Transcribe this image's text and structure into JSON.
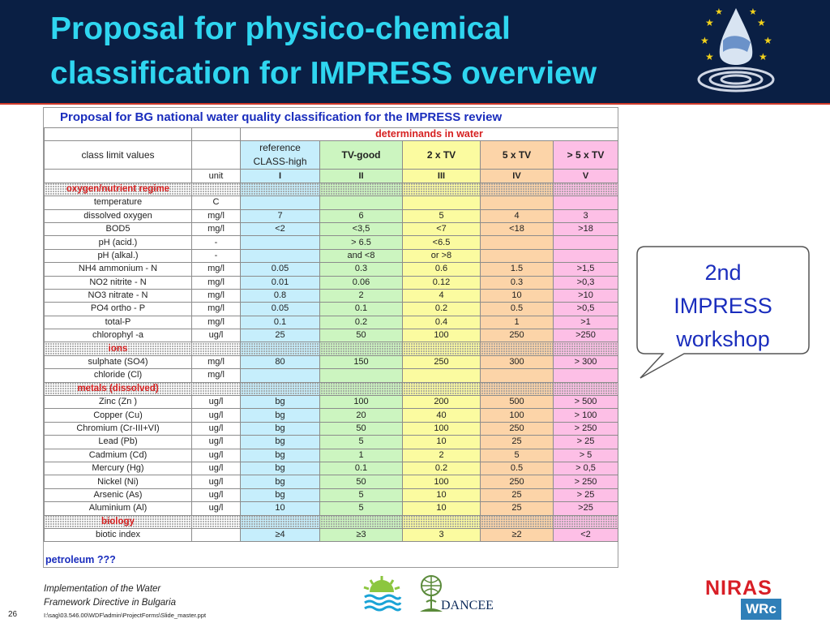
{
  "slide": {
    "title": "Proposal for physico-chemical classification for IMPRESS overview",
    "page_number": "26"
  },
  "callout": {
    "line1": "2nd",
    "line2": "IMPRESS",
    "line3": "workshop"
  },
  "footer": {
    "line1": "Implementation of the Water",
    "line2": "Framework Directive in Bulgaria",
    "path": "I:\\sag\\03.546.00\\WDF\\admin\\ProjectForms\\Slide_master.ppt",
    "logo_left": "DANCEE",
    "logo_right_top": "NIRAS",
    "logo_right_bottom": "WRc"
  },
  "table": {
    "title": "Proposal for BG national water quality classification for the  IMPRESS review",
    "determinands_header": "determinands in water",
    "class_limit_label": "class limit values",
    "class_headers": [
      "reference CLASS-high",
      "TV-good",
      "2 x TV",
      "5 x TV",
      "> 5 x TV"
    ],
    "unit_label": "unit",
    "class_numbers": [
      "I",
      "II",
      "III",
      "IV",
      "V"
    ],
    "sections": {
      "oxygen": "oxygen/nutrient regime",
      "ions": "ions",
      "metals": "metals (dissolved)",
      "biology": "biology"
    },
    "oxygen_rows": [
      [
        "temperature",
        "C",
        "",
        "",
        "",
        "",
        ""
      ],
      [
        "dissolved oxygen",
        "mg/l",
        "7",
        "6",
        "5",
        "4",
        "3"
      ],
      [
        "BOD5",
        "mg/l",
        "<2",
        "<3,5",
        "<7",
        "<18",
        ">18"
      ],
      [
        "pH (acid.)",
        "-",
        "",
        "> 6.5",
        "<6.5",
        "",
        ""
      ],
      [
        "pH (alkal.)",
        "-",
        "",
        "and <8",
        "or >8",
        "",
        ""
      ],
      [
        "NH4 ammonium - N",
        "mg/l",
        "0.05",
        "0.3",
        "0.6",
        "1.5",
        ">1,5"
      ],
      [
        "NO2 nitrite - N",
        "mg/l",
        "0.01",
        "0.06",
        "0.12",
        "0.3",
        ">0,3"
      ],
      [
        "NO3 nitrate - N",
        "mg/l",
        "0.8",
        "2",
        "4",
        "10",
        ">10"
      ],
      [
        "PO4 ortho - P",
        "mg/l",
        "0.05",
        "0.1",
        "0.2",
        "0.5",
        ">0,5"
      ],
      [
        "total-P",
        "mg/l",
        "0.1",
        "0.2",
        "0.4",
        "1",
        ">1"
      ],
      [
        "chlorophyl -a",
        "ug/l",
        "25",
        "50",
        "100",
        "250",
        ">250"
      ]
    ],
    "ions_rows": [
      [
        "sulphate (SO4)",
        "mg/l",
        "80",
        "150",
        "250",
        "300",
        "> 300"
      ],
      [
        "chloride (Cl)",
        "mg/l",
        "",
        "",
        "",
        "",
        ""
      ]
    ],
    "metals_rows": [
      [
        "Zinc (Zn )",
        "ug/l",
        "bg",
        "100",
        "200",
        "500",
        "> 500"
      ],
      [
        "Copper (Cu)",
        "ug/l",
        "bg",
        "20",
        "40",
        "100",
        "> 100"
      ],
      [
        "Chromium (Cr-III+VI)",
        "ug/l",
        "bg",
        "50",
        "100",
        "250",
        "> 250"
      ],
      [
        "Lead (Pb)",
        "ug/l",
        "bg",
        "5",
        "10",
        "25",
        "> 25"
      ],
      [
        "Cadmium (Cd)",
        "ug/l",
        "bg",
        "1",
        "2",
        "5",
        "> 5"
      ],
      [
        "Mercury (Hg)",
        "ug/l",
        "bg",
        "0.1",
        "0.2",
        "0.5",
        "> 0,5"
      ],
      [
        "Nickel (Ni)",
        "ug/l",
        "bg",
        "50",
        "100",
        "250",
        "> 250"
      ],
      [
        "Arsenic (As)",
        "ug/l",
        "bg",
        "5",
        "10",
        "25",
        "> 25"
      ],
      [
        "Aluminium (Al)",
        "ug/l",
        "10",
        "5",
        "10",
        "25",
        ">25"
      ]
    ],
    "biology_rows": [
      [
        "biotic index",
        "",
        "≥4",
        "≥3",
        "3",
        "≥2",
        "<2"
      ]
    ],
    "footer_row": "petroleum ???"
  }
}
